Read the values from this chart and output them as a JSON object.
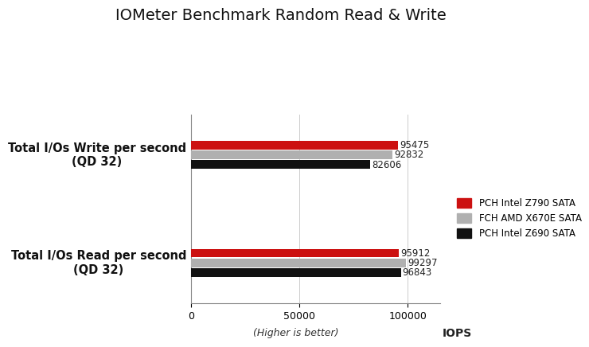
{
  "title": "IOMeter Benchmark Random Read & Write",
  "groups": [
    "Total I/Os Write per second\n(QD 32)",
    "Total I/Os Read per second\n(QD 32)"
  ],
  "series": [
    {
      "label": "PCH Intel Z790 SATA",
      "color": "#cc1111",
      "values": [
        95475,
        95912
      ]
    },
    {
      "label": "FCH AMD X670E SATA",
      "color": "#b0b0b0",
      "values": [
        92832,
        99297
      ]
    },
    {
      "label": "PCH Intel Z690 SATA",
      "color": "#111111",
      "values": [
        82606,
        96843
      ]
    }
  ],
  "xlim": [
    0,
    115000
  ],
  "xlabel": "IOPS",
  "xlabel_note": "(Higher is better)",
  "xticks": [
    0,
    50000,
    100000
  ],
  "xtick_labels": [
    "0",
    "50000",
    "100000"
  ],
  "bar_height": 0.18,
  "value_fontsize": 8.5,
  "label_fontsize": 10.5,
  "title_fontsize": 14,
  "background_color": "#ffffff"
}
